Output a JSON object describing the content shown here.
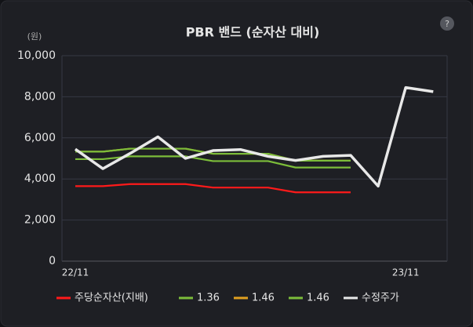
{
  "chart_data": {
    "type": "line",
    "title": "PBR 밴드 (순자산 대비)",
    "y_unit": "(원)",
    "categories": [
      "22/11",
      null,
      null,
      null,
      null,
      null,
      null,
      null,
      null,
      null,
      null,
      null,
      "23/11",
      null
    ],
    "series": [
      {
        "name": "주당순자산(지배)",
        "color": "#ff1a1a",
        "values": [
          3650,
          3650,
          3750,
          3750,
          3750,
          3580,
          3580,
          3580,
          3350,
          3350,
          3350,
          null,
          null,
          null
        ]
      },
      {
        "name": "1.36",
        "color": "#7cbd3a",
        "values": [
          4964,
          4964,
          5100,
          5100,
          5100,
          4869,
          4869,
          4869,
          4556,
          4556,
          4556,
          null,
          null,
          null
        ]
      },
      {
        "name": "1.46",
        "color": "#e0a020",
        "values": [
          5330,
          5330,
          5475,
          5475,
          5475,
          5227,
          5227,
          5227,
          4891,
          4891,
          4891,
          null,
          null,
          null
        ]
      },
      {
        "name": "1.46",
        "color": "#7cbd3a",
        "values": [
          5330,
          5330,
          5475,
          5475,
          5475,
          5227,
          5227,
          5227,
          4891,
          4891,
          4891,
          null,
          null,
          null
        ]
      },
      {
        "name": "수정주가",
        "color": "#e8e8e8",
        "values": [
          5450,
          4500,
          5250,
          6050,
          5000,
          5380,
          5430,
          5100,
          4900,
          5100,
          5150,
          3650,
          8450,
          8250
        ]
      }
    ],
    "ylim": [
      0,
      10000
    ],
    "yticks": [
      0,
      {
        "value": 2000,
        "label": "2,000"
      },
      {
        "value": 4000,
        "label": "4,000"
      },
      {
        "value": 6000,
        "label": "6,000"
      },
      {
        "value": 8000,
        "label": "8,000"
      },
      {
        "value": 10000,
        "label": "10,000"
      }
    ],
    "grid": true,
    "legend": "bottom"
  }
}
